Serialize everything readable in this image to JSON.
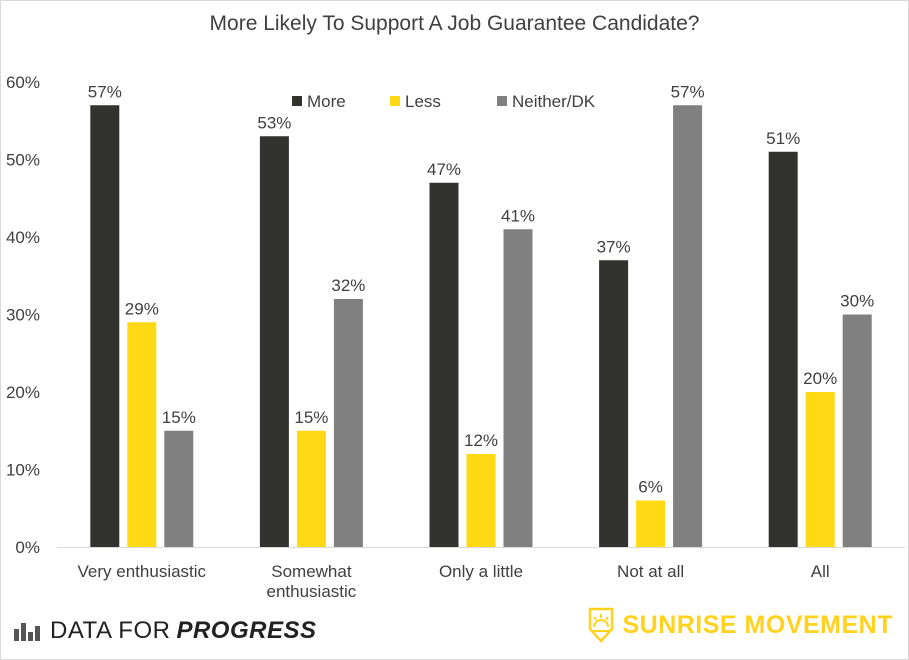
{
  "chart_data": {
    "type": "bar",
    "title": "More Likely To Support A Job Guarantee Candidate?",
    "categories": [
      [
        "Very enthusiastic"
      ],
      [
        "Somewhat",
        "enthusiastic"
      ],
      [
        "Only a little"
      ],
      [
        "Not at all"
      ],
      [
        "All"
      ]
    ],
    "series": [
      {
        "name": "More",
        "color": "#32322e",
        "values": [
          57,
          53,
          47,
          37,
          51
        ]
      },
      {
        "name": "Less",
        "color": "#ffd913",
        "values": [
          29,
          15,
          12,
          6,
          20
        ]
      },
      {
        "name": "Neither/DK",
        "color": "#808080",
        "values": [
          15,
          32,
          41,
          57,
          30
        ]
      }
    ],
    "value_suffix": "%",
    "ylim": [
      0,
      60
    ],
    "yticks": [
      "0%",
      "10%",
      "20%",
      "30%",
      "40%",
      "50%",
      "60%"
    ],
    "grid": false,
    "legend_position": "top-right"
  },
  "footer": {
    "left_brand_plain": "DATA FOR",
    "left_brand_bold": "PROGRESS",
    "right_brand": "SUNRISE MOVEMENT",
    "right_brand_color": "#ffd21f"
  }
}
